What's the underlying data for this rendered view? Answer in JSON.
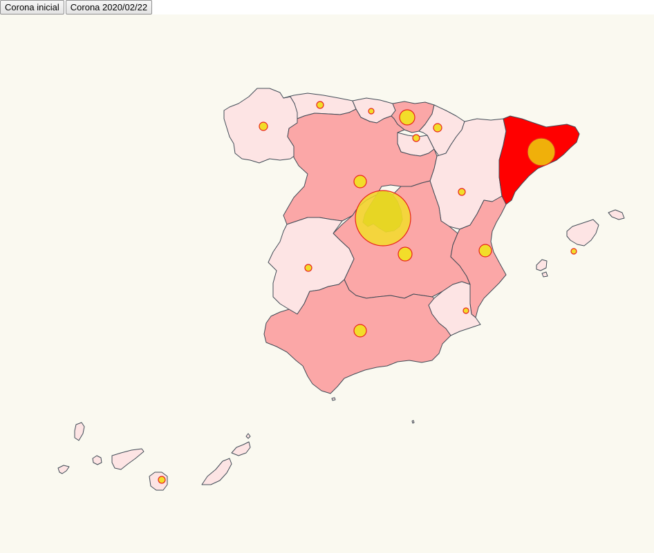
{
  "toolbar": {
    "btn_initial": "Corona inicial",
    "btn_date": "Corona 2020/02/22"
  },
  "colors": {
    "background": "#faf9f0",
    "level_low": "#fde4e4",
    "level_mid": "#fba7a7",
    "level_high": "#ff0000",
    "border": "#3f4a55",
    "bubble_fill": "#f2dd2a",
    "bubble_stroke": "#e8221a"
  },
  "regions": [
    {
      "name": "galicia",
      "level": "low"
    },
    {
      "name": "asturias",
      "level": "low"
    },
    {
      "name": "cantabria",
      "level": "low"
    },
    {
      "name": "pais-vasco",
      "level": "mid"
    },
    {
      "name": "navarra",
      "level": "low"
    },
    {
      "name": "la-rioja",
      "level": "low"
    },
    {
      "name": "aragon",
      "level": "low"
    },
    {
      "name": "cataluna",
      "level": "high"
    },
    {
      "name": "castilla-y-leon",
      "level": "mid"
    },
    {
      "name": "madrid",
      "level": "mid"
    },
    {
      "name": "castilla-la-mancha",
      "level": "mid"
    },
    {
      "name": "extremadura",
      "level": "low"
    },
    {
      "name": "comunidad-valenciana",
      "level": "mid"
    },
    {
      "name": "murcia",
      "level": "low"
    },
    {
      "name": "andalucia",
      "level": "mid"
    },
    {
      "name": "baleares",
      "level": "low"
    },
    {
      "name": "canarias",
      "level": "low"
    }
  ]
}
